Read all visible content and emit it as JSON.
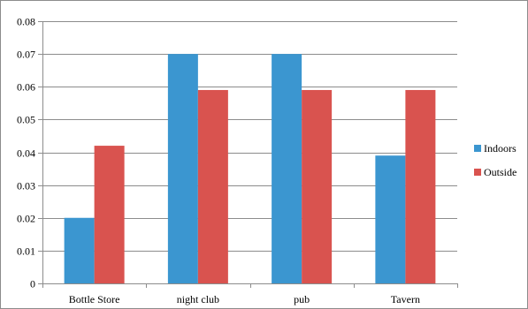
{
  "chart_data": {
    "type": "bar",
    "categories": [
      "Bottle Store",
      "night club",
      "pub",
      "Tavern"
    ],
    "series": [
      {
        "name": "Indoors",
        "values": [
          0.02,
          0.07,
          0.07,
          0.039
        ],
        "color": "#3b96d0"
      },
      {
        "name": "Outside",
        "values": [
          0.042,
          0.059,
          0.059,
          0.059
        ],
        "color": "#d9534f"
      }
    ],
    "ylim": [
      0,
      0.08
    ],
    "yticks": [
      "0",
      "0.01",
      "0.02",
      "0.03",
      "0.04",
      "0.05",
      "0.06",
      "0.07",
      "0.08"
    ],
    "title": "",
    "xlabel": "",
    "ylabel": "",
    "grid": true,
    "legend": "right"
  }
}
